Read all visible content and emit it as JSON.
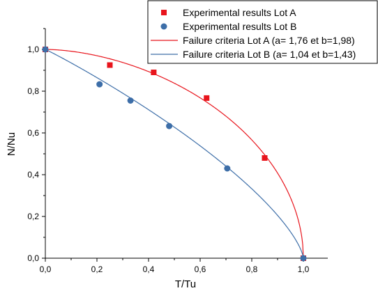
{
  "chart_data": {
    "type": "scatter",
    "xlabel": "T/Tu",
    "ylabel": "N/Nu",
    "xlim": [
      0,
      1.0
    ],
    "ylim": [
      0,
      1.1
    ],
    "xticks": [
      "0,0",
      "0,2",
      "0,4",
      "0,6",
      "0,8",
      "1,0"
    ],
    "yticks": [
      "0,0",
      "0,2",
      "0,4",
      "0,6",
      "0,8",
      "1,0"
    ],
    "xtick_values": [
      0,
      0.2,
      0.4,
      0.6,
      0.8,
      1.0
    ],
    "ytick_values": [
      0,
      0.2,
      0.4,
      0.6,
      0.8,
      1.0
    ],
    "grid": false,
    "legend_position": "top-right",
    "series": [
      {
        "name": "Experimental results Lot A",
        "kind": "points",
        "marker": "square",
        "color": "#e8141c",
        "x": [
          0,
          0.25,
          0.42,
          0.625,
          0.85,
          1.0
        ],
        "y": [
          1.0,
          0.925,
          0.89,
          0.767,
          0.48,
          0
        ]
      },
      {
        "name": "Experimental results Lot B",
        "kind": "points",
        "marker": "circle",
        "color": "#3d6ea8",
        "x": [
          0,
          0.21,
          0.33,
          0.48,
          0.705,
          1.0
        ],
        "y": [
          1.0,
          0.833,
          0.755,
          0.633,
          0.43,
          0
        ]
      },
      {
        "name": "Failure criteria Lot A (a= 1,76 et b=1,98)",
        "kind": "curve",
        "color": "#e8141c",
        "a": 1.76,
        "b": 1.98
      },
      {
        "name": "Failure criteria Lot B (a= 1,04 et b=1,43)",
        "kind": "curve",
        "color": "#3d6ea8",
        "a": 1.04,
        "b": 1.43
      }
    ]
  }
}
